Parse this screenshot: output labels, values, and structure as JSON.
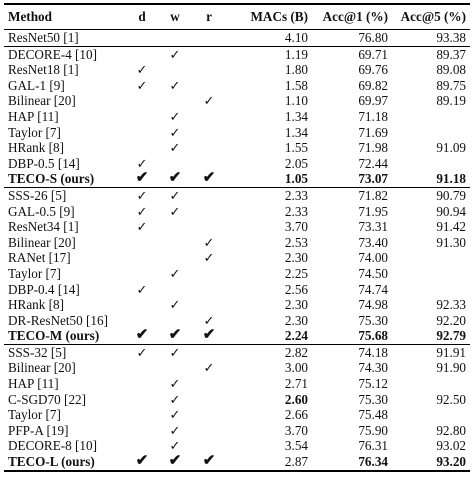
{
  "headers": [
    "Method",
    "d",
    "w",
    "r",
    "MACs (B)",
    "Acc@1 (%)",
    "Acc@5 (%)"
  ],
  "check_thin": "✓",
  "check_bold": "✔",
  "groups": [
    {
      "rows": [
        {
          "method": "ResNet50 [1]",
          "d": "",
          "w": "",
          "r": "",
          "macs": "4.10",
          "acc1": "76.80",
          "acc5": "93.38"
        }
      ]
    },
    {
      "rows": [
        {
          "method": "DECORE-4 [10]",
          "d": "",
          "w": "✓",
          "r": "",
          "macs": "1.19",
          "acc1": "69.71",
          "acc5": "89.37"
        },
        {
          "method": "ResNet18 [1]",
          "d": "✓",
          "w": "",
          "r": "",
          "macs": "1.80",
          "acc1": "69.76",
          "acc5": "89.08"
        },
        {
          "method": "GAL-1 [9]",
          "d": "✓",
          "w": "✓",
          "r": "",
          "macs": "1.58",
          "acc1": "69.82",
          "acc5": "89.75"
        },
        {
          "method": "Bilinear [20]",
          "d": "",
          "w": "",
          "r": "✓",
          "macs": "1.10",
          "acc1": "69.97",
          "acc5": "89.19"
        },
        {
          "method": "HAP [11]",
          "d": "",
          "w": "✓",
          "r": "",
          "macs": "1.34",
          "acc1": "71.18",
          "acc5": ""
        },
        {
          "method": "Taylor [7]",
          "d": "",
          "w": "✓",
          "r": "",
          "macs": "1.34",
          "acc1": "71.69",
          "acc5": ""
        },
        {
          "method": "HRank [8]",
          "d": "",
          "w": "✓",
          "r": "",
          "macs": "1.55",
          "acc1": "71.98",
          "acc5": "91.09"
        },
        {
          "method": "DBP-0.5 [14]",
          "d": "✓",
          "w": "",
          "r": "",
          "macs": "2.05",
          "acc1": "72.44",
          "acc5": ""
        },
        {
          "method": "TECO-S (ours)",
          "d": "✔",
          "w": "✔",
          "r": "✔",
          "macs": "1.05",
          "acc1": "73.07",
          "acc5": "91.18",
          "best": true
        }
      ]
    },
    {
      "rows": [
        {
          "method": "SSS-26 [5]",
          "d": "✓",
          "w": "✓",
          "r": "",
          "macs": "2.33",
          "acc1": "71.82",
          "acc5": "90.79"
        },
        {
          "method": "GAL-0.5 [9]",
          "d": "✓",
          "w": "✓",
          "r": "",
          "macs": "2.33",
          "acc1": "71.95",
          "acc5": "90.94"
        },
        {
          "method": "ResNet34 [1]",
          "d": "✓",
          "w": "",
          "r": "",
          "macs": "3.70",
          "acc1": "73.31",
          "acc5": "91.42"
        },
        {
          "method": "Bilinear [20]",
          "d": "",
          "w": "",
          "r": "✓",
          "macs": "2.53",
          "acc1": "73.40",
          "acc5": "91.30"
        },
        {
          "method": "RANet [17]",
          "d": "",
          "w": "",
          "r": "✓",
          "macs": "2.30",
          "acc1": "74.00",
          "acc5": ""
        },
        {
          "method": "Taylor [7]",
          "d": "",
          "w": "✓",
          "r": "",
          "macs": "2.25",
          "acc1": "74.50",
          "acc5": ""
        },
        {
          "method": "DBP-0.4 [14]",
          "d": "✓",
          "w": "",
          "r": "",
          "macs": "2.56",
          "acc1": "74.74",
          "acc5": ""
        },
        {
          "method": "HRank [8]",
          "d": "",
          "w": "✓",
          "r": "",
          "macs": "2.30",
          "acc1": "74.98",
          "acc5": "92.33"
        },
        {
          "method": "DR-ResNet50 [16]",
          "d": "",
          "w": "",
          "r": "✓",
          "macs": "2.30",
          "acc1": "75.30",
          "acc5": "92.20"
        },
        {
          "method": "TECO-M (ours)",
          "d": "✔",
          "w": "✔",
          "r": "✔",
          "macs": "2.24",
          "acc1": "75.68",
          "acc5": "92.79",
          "best": true
        }
      ]
    },
    {
      "rows": [
        {
          "method": "SSS-32 [5]",
          "d": "✓",
          "w": "✓",
          "r": "",
          "macs": "2.82",
          "acc1": "74.18",
          "acc5": "91.91"
        },
        {
          "method": "Bilinear [20]",
          "d": "",
          "w": "",
          "r": "✓",
          "macs": "3.00",
          "acc1": "74.30",
          "acc5": "91.90"
        },
        {
          "method": "HAP [11]",
          "d": "",
          "w": "✓",
          "r": "",
          "macs": "2.71",
          "acc1": "75.12",
          "acc5": ""
        },
        {
          "method": "C-SGD70 [22]",
          "d": "",
          "w": "✓",
          "r": "",
          "macs": "2.60",
          "acc1": "75.30",
          "acc5": "92.50",
          "macs_bold": true
        },
        {
          "method": "Taylor [7]",
          "d": "",
          "w": "✓",
          "r": "",
          "macs": "2.66",
          "acc1": "75.48",
          "acc5": ""
        },
        {
          "method": "PFP-A [19]",
          "d": "",
          "w": "✓",
          "r": "",
          "macs": "3.70",
          "acc1": "75.90",
          "acc5": "92.80"
        },
        {
          "method": "DECORE-8 [10]",
          "d": "",
          "w": "✓",
          "r": "",
          "macs": "3.54",
          "acc1": "76.31",
          "acc5": "93.02"
        },
        {
          "method": "TECO-L (ours)",
          "d": "✔",
          "w": "✔",
          "r": "✔",
          "macs": "2.87",
          "acc1": "76.34",
          "acc5": "93.20",
          "best": true,
          "macs_plain": true
        }
      ]
    }
  ]
}
